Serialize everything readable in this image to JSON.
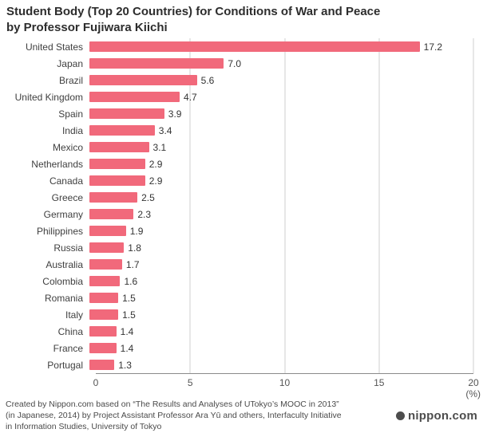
{
  "title": {
    "line1": "Student Body (Top 20 Countries) for Conditions of War and Peace",
    "line2": "by Professor Fujiwara Kiichi"
  },
  "chart_data": {
    "type": "bar",
    "orientation": "horizontal",
    "title": "Student Body (Top 20 Countries) for Conditions of War and Peace by Professor Fujiwara Kiichi",
    "categories": [
      "United States",
      "Japan",
      "Brazil",
      "United Kingdom",
      "Spain",
      "India",
      "Mexico",
      "Netherlands",
      "Canada",
      "Greece",
      "Germany",
      "Philippines",
      "Russia",
      "Australia",
      "Colombia",
      "Romania",
      "Italy",
      "China",
      "France",
      "Portugal"
    ],
    "values": [
      17.2,
      7.0,
      5.6,
      4.7,
      3.9,
      3.4,
      3.1,
      2.9,
      2.9,
      2.5,
      2.3,
      1.9,
      1.8,
      1.7,
      1.6,
      1.5,
      1.5,
      1.4,
      1.4,
      1.3
    ],
    "value_labels": [
      "17.2",
      "7.0",
      "5.6",
      "4.7",
      "3.9",
      "3.4",
      "3.1",
      "2.9",
      "2.9",
      "2.5",
      "2.3",
      "1.9",
      "1.8",
      "1.7",
      "1.6",
      "1.5",
      "1.5",
      "1.4",
      "1.4",
      "1.3"
    ],
    "xlabel": "",
    "ylabel": "",
    "xlim": [
      0,
      20
    ],
    "x_ticks": [
      0,
      5,
      10,
      15,
      20
    ],
    "x_axis_unit": "(%)",
    "grid": true,
    "legend": "none",
    "bar_color": "#f1697b"
  },
  "footer": {
    "line1": "Created by Nippon.com based on “The Results and Analyses of UTokyo’s MOOC in 2013”",
    "line2": "(in Japanese, 2014) by Project Assistant Professor Ara Yū and others, Interfaculty Initiative",
    "line3": "in Information Studies, University of Tokyo"
  },
  "logo": {
    "text": "nippon.com"
  }
}
